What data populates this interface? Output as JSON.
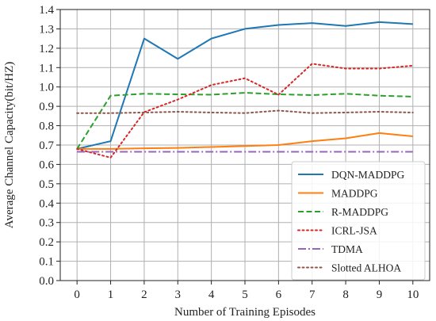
{
  "chart_data": {
    "type": "line",
    "xlabel": "Number of Training Episodes",
    "ylabel": "Average Channel Capacity(bit/HZ)",
    "x": [
      0,
      1,
      2,
      3,
      4,
      5,
      6,
      7,
      8,
      9,
      10
    ],
    "xlim": [
      -0.5,
      10.5
    ],
    "ylim": [
      0.0,
      1.4
    ],
    "xticks": [
      "0",
      "1",
      "2",
      "3",
      "4",
      "5",
      "6",
      "7",
      "8",
      "9",
      "10"
    ],
    "yticks": [
      "0.0",
      "0.1",
      "0.2",
      "0.3",
      "0.4",
      "0.5",
      "0.6",
      "0.7",
      "0.8",
      "0.9",
      "1.0",
      "1.1",
      "1.2",
      "1.3",
      "1.4"
    ],
    "grid": true,
    "legend_position": "lower-right",
    "series": [
      {
        "name": "DQN-MADDPG",
        "color": "#1f77b4",
        "style": "solid",
        "values": [
          0.68,
          0.72,
          1.25,
          1.145,
          1.25,
          1.3,
          1.32,
          1.33,
          1.315,
          1.335,
          1.325
        ]
      },
      {
        "name": "MADDPG",
        "color": "#ff7f0e",
        "style": "solid",
        "values": [
          0.68,
          0.68,
          0.683,
          0.685,
          0.69,
          0.695,
          0.7,
          0.72,
          0.735,
          0.762,
          0.745
        ]
      },
      {
        "name": "R-MADDPG",
        "color": "#2ca02c",
        "style": "dashed",
        "values": [
          0.68,
          0.955,
          0.965,
          0.962,
          0.96,
          0.97,
          0.962,
          0.958,
          0.965,
          0.955,
          0.95
        ]
      },
      {
        "name": "ICRL-JSA",
        "color": "#d62728",
        "style": "dotted",
        "values": [
          0.68,
          0.635,
          0.87,
          0.935,
          1.01,
          1.045,
          0.96,
          1.12,
          1.095,
          1.095,
          1.11
        ]
      },
      {
        "name": "TDMA",
        "color": "#9467bd",
        "style": "dashdot",
        "values": [
          0.665,
          0.665,
          0.665,
          0.665,
          0.665,
          0.665,
          0.665,
          0.665,
          0.665,
          0.665,
          0.665
        ]
      },
      {
        "name": "Slotted ALHOA",
        "color": "#8c564b",
        "style": "dotted",
        "values": [
          0.865,
          0.865,
          0.868,
          0.872,
          0.868,
          0.865,
          0.878,
          0.865,
          0.868,
          0.872,
          0.868
        ]
      }
    ]
  }
}
